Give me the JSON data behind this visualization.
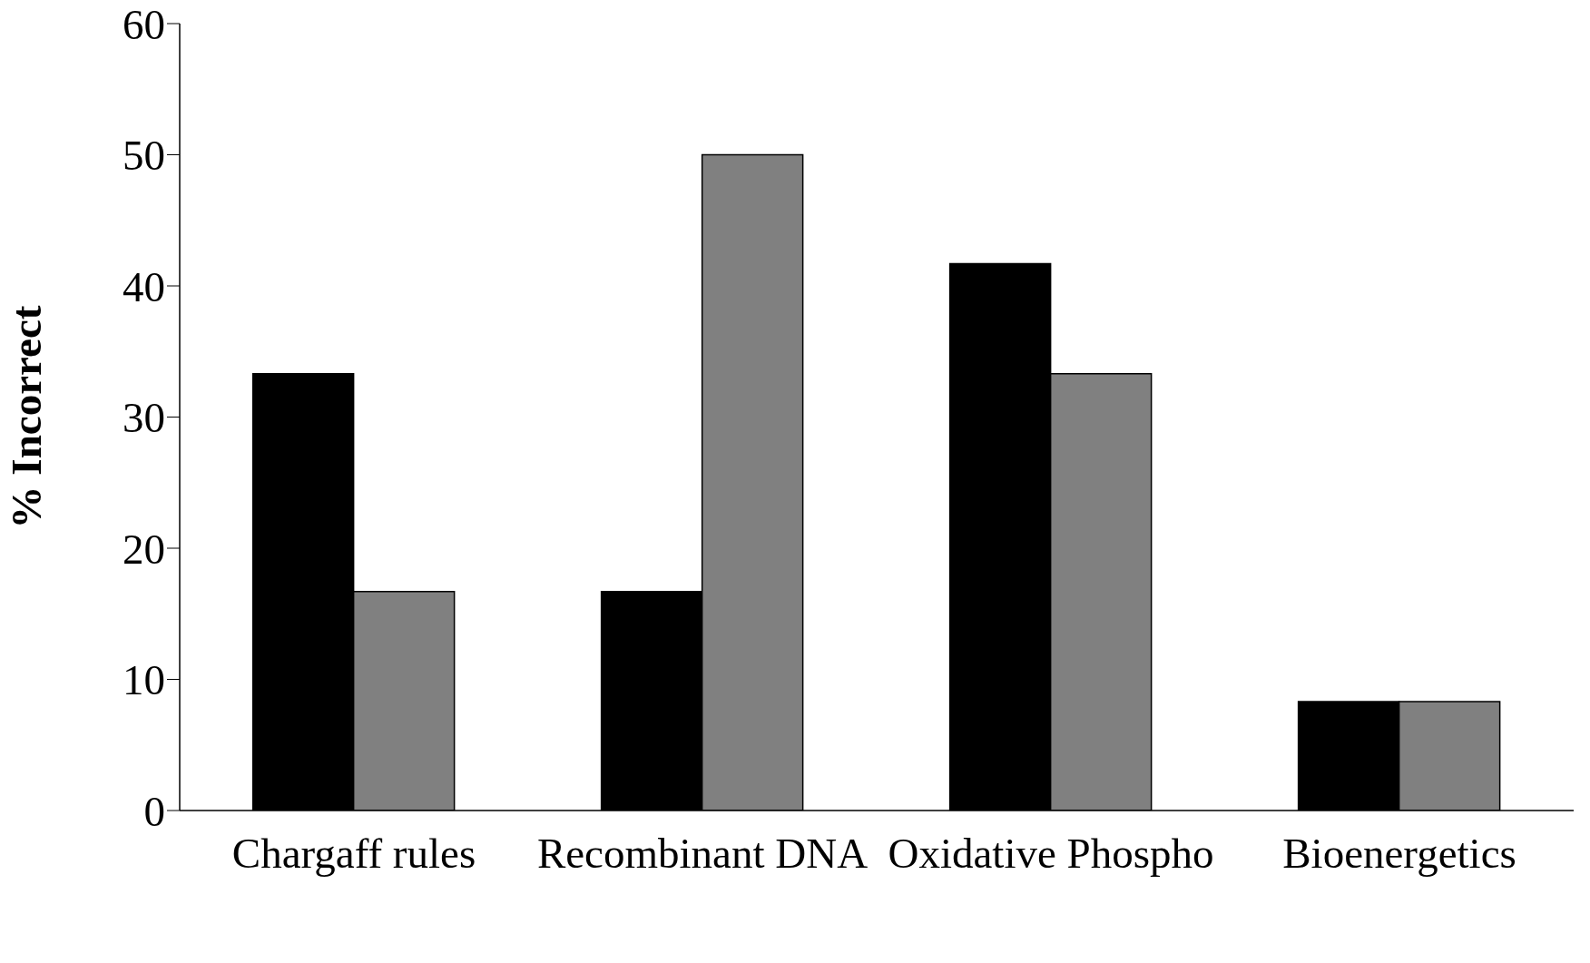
{
  "chart_data": {
    "type": "bar",
    "ylabel": "% Incorrect",
    "categories": [
      "Chargaff rules",
      "Recombinant DNA",
      "Oxidative Phospho",
      "Bioenergetics"
    ],
    "series": [
      {
        "color": "#000000",
        "values": [
          33.3,
          16.7,
          41.7,
          8.3
        ]
      },
      {
        "color": "#808080",
        "values": [
          16.7,
          50,
          33.3,
          8.3
        ]
      }
    ],
    "ylim": [
      0,
      60
    ],
    "yticks": [
      0,
      10,
      20,
      30,
      40,
      50,
      60
    ],
    "grid": false,
    "legend": false
  }
}
